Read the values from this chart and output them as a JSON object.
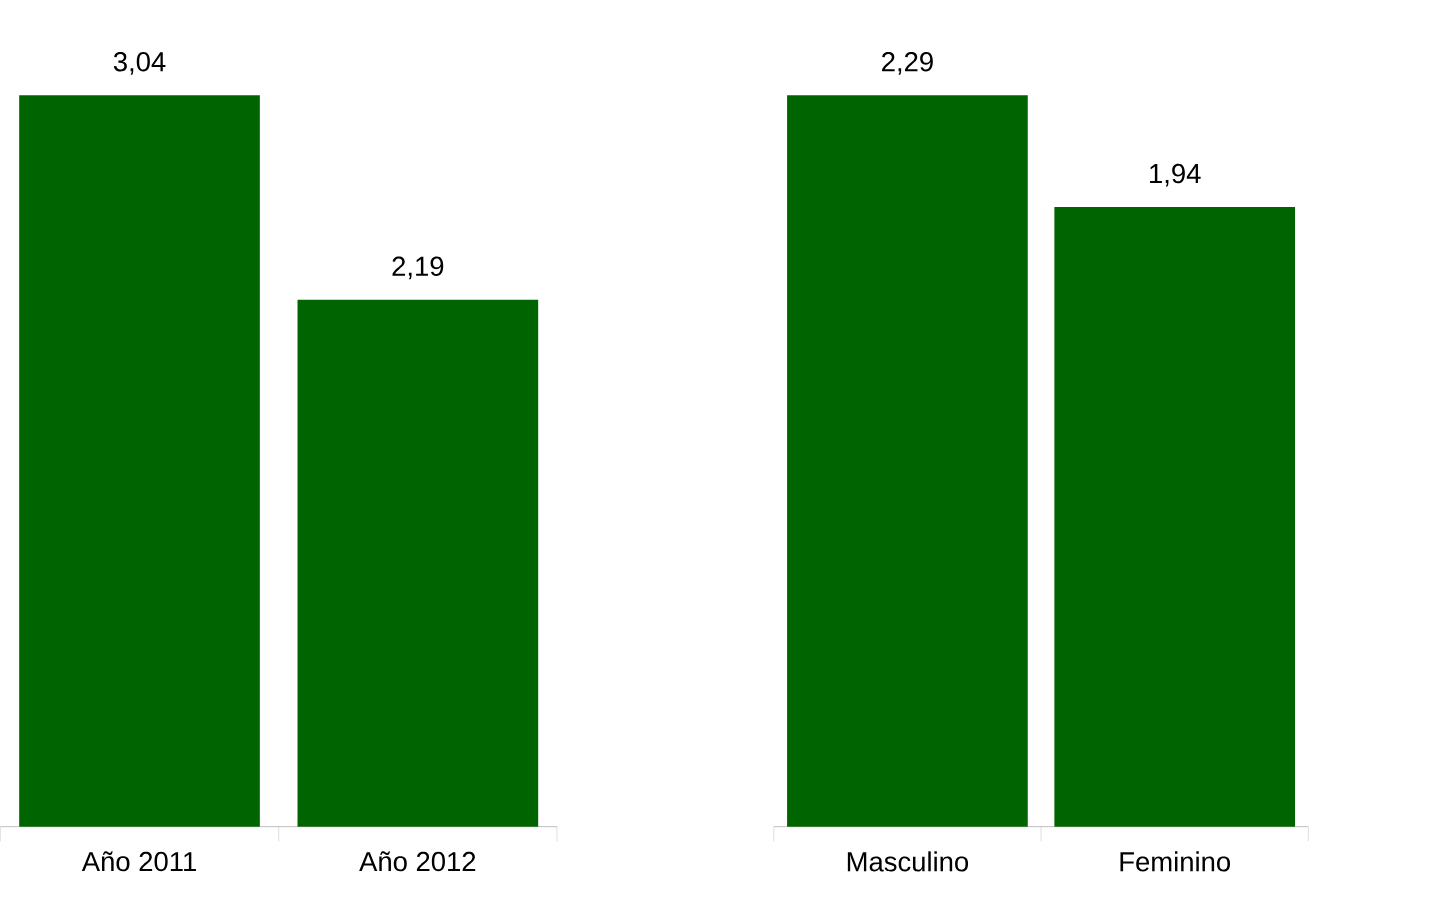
{
  "chart_data": [
    {
      "type": "bar",
      "categories": [
        "Año 2011",
        "Año 2012"
      ],
      "values": [
        3.04,
        2.19
      ],
      "value_labels": [
        "3,04",
        "2,19"
      ],
      "color": "#006400",
      "tick_labels": "x"
    },
    {
      "type": "bar",
      "categories": [
        "Masculino",
        "Feminino"
      ],
      "values": [
        2.29,
        1.94
      ],
      "value_labels": [
        "2,29",
        "1,94"
      ],
      "color": "#006400",
      "tick_labels": "x"
    }
  ]
}
